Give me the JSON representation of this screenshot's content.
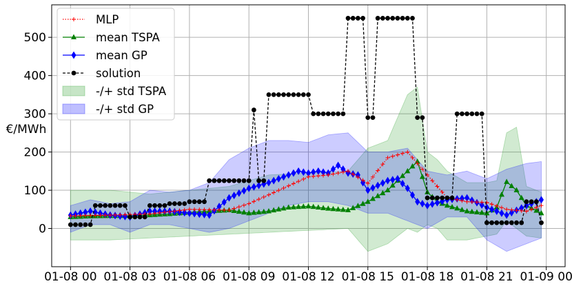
{
  "chart_data": {
    "type": "line",
    "title": "",
    "xlabel": "",
    "ylabel": "€/MWh",
    "x_ticks": [
      "01-08 00",
      "01-08 03",
      "01-08 06",
      "01-08 09",
      "01-08 12",
      "01-08 15",
      "01-08 18",
      "01-08 21",
      "01-09 00"
    ],
    "x_tick_hours": [
      0,
      3,
      6,
      9,
      12,
      15,
      18,
      21,
      24
    ],
    "x_unit": "hours since 01-08 00",
    "y_ticks": [
      0,
      100,
      200,
      300,
      400,
      500
    ],
    "ylim": [
      -100,
      585
    ],
    "xlim": [
      -0.95,
      24.95
    ],
    "grid": true,
    "legend_position": "top-left",
    "step_hours": 0.25,
    "series": [
      {
        "name": "MLP",
        "style": "dotted-plus",
        "color": "#ff0000",
        "x": [
          0,
          2,
          4,
          6,
          8,
          9,
          10,
          12,
          13,
          14,
          15,
          16,
          17,
          18,
          19,
          20,
          21,
          22,
          23,
          23.75
        ],
        "y": [
          33,
          35,
          38,
          50,
          48,
          65,
          88,
          135,
          140,
          150,
          118,
          185,
          200,
          140,
          80,
          70,
          68,
          50,
          45,
          60
        ]
      },
      {
        "name": "mean TSPA",
        "style": "solid-triangle",
        "color": "#008000",
        "x": [
          0,
          1,
          2,
          3,
          4,
          5,
          6,
          7,
          8,
          9,
          10,
          11,
          12,
          13,
          14,
          15,
          16,
          17,
          17.5,
          18,
          18.5,
          19,
          20,
          21,
          21.5,
          22,
          22.5,
          23,
          23.75
        ],
        "y": [
          30,
          32,
          33,
          33,
          35,
          38,
          42,
          45,
          48,
          40,
          45,
          55,
          58,
          52,
          48,
          70,
          100,
          150,
          175,
          95,
          70,
          60,
          45,
          40,
          55,
          122,
          100,
          60,
          40
        ]
      },
      {
        "name": "mean GP",
        "style": "solid-diamond",
        "color": "#0000ff",
        "x": [
          0,
          1,
          2,
          3,
          4,
          5,
          6,
          7,
          8,
          9,
          10,
          11,
          11.5,
          12,
          12.5,
          13,
          13.5,
          14,
          14.5,
          15,
          16,
          16.5,
          17,
          17.5,
          18,
          19,
          20,
          21,
          22,
          23,
          23.75
        ],
        "y": [
          35,
          45,
          35,
          30,
          45,
          45,
          40,
          35,
          80,
          105,
          120,
          140,
          150,
          145,
          150,
          145,
          165,
          145,
          140,
          100,
          125,
          130,
          105,
          70,
          60,
          75,
          80,
          55,
          35,
          60,
          75
        ]
      },
      {
        "name": "solution",
        "style": "dashed-circle",
        "color": "#000000",
        "x": [
          0,
          1,
          1.25,
          2,
          3,
          4,
          5,
          6,
          7,
          8,
          9.25,
          9.5,
          10,
          11,
          12,
          12.25,
          13,
          14,
          15,
          15.5,
          16,
          17,
          17.5,
          18,
          19,
          19.5,
          20,
          20.5,
          21,
          21.5,
          22,
          23,
          23.75
        ],
        "y": [
          10,
          10,
          60,
          60,
          30,
          60,
          65,
          70,
          125,
          125,
          310,
          125,
          350,
          350,
          350,
          300,
          300,
          550,
          290,
          550,
          550,
          550,
          290,
          80,
          80,
          300,
          300,
          300,
          15,
          15,
          15,
          70,
          15
        ]
      }
    ],
    "bands": [
      {
        "name": "-/+ std TSPA",
        "color": "#2ca02c",
        "opacity": 0.22,
        "x": [
          0,
          2,
          4,
          6,
          8,
          10,
          12,
          14,
          15,
          16,
          17,
          17.5,
          18,
          18.5,
          19,
          20,
          21,
          21.5,
          22,
          22.5,
          23,
          23.75
        ],
        "lower": [
          -30,
          -30,
          -25,
          -20,
          -15,
          -10,
          -5,
          0,
          -60,
          -40,
          0,
          -10,
          10,
          0,
          -30,
          -30,
          -20,
          -15,
          20,
          0,
          -20,
          -25
        ],
        "upper": [
          100,
          100,
          90,
          100,
          110,
          140,
          145,
          150,
          210,
          230,
          350,
          370,
          200,
          180,
          150,
          120,
          120,
          125,
          250,
          265,
          110,
          95
        ]
      },
      {
        "name": "-/+ std GP",
        "color": "#0000ff",
        "opacity": 0.2,
        "x": [
          0,
          1,
          2,
          3,
          4,
          5,
          6,
          7,
          8,
          9,
          10,
          11,
          12,
          13,
          14,
          15,
          16,
          17,
          18,
          19,
          20,
          21,
          22,
          23,
          23.75
        ],
        "lower": [
          -10,
          10,
          10,
          -10,
          10,
          10,
          0,
          -10,
          0,
          20,
          40,
          60,
          70,
          70,
          60,
          40,
          40,
          20,
          0,
          30,
          30,
          -30,
          -60,
          -40,
          -25
        ],
        "upper": [
          60,
          75,
          65,
          70,
          100,
          95,
          100,
          120,
          180,
          210,
          230,
          230,
          225,
          245,
          250,
          200,
          200,
          210,
          150,
          140,
          150,
          130,
          155,
          170,
          175
        ]
      }
    ]
  }
}
